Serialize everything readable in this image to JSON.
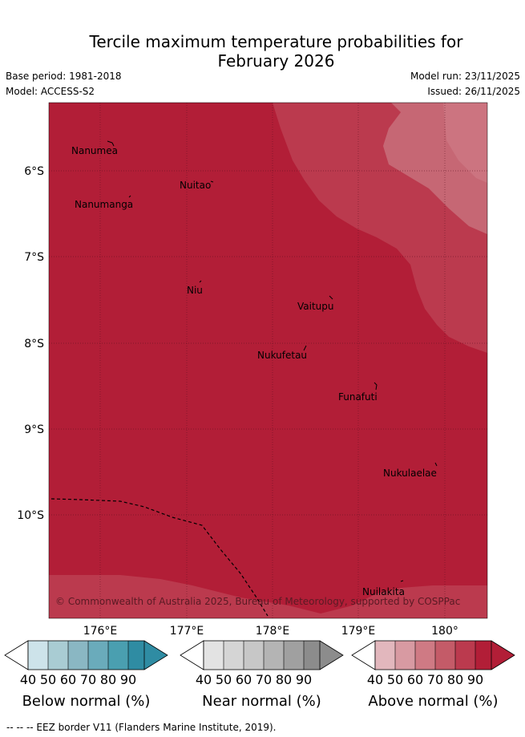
{
  "title": {
    "line1": "Tercile maximum temperature probabilities for",
    "line2": "February 2026"
  },
  "meta": {
    "base_period": "Base period: 1981-2018",
    "model": "Model: ACCESS-S2",
    "model_run": "Model run: 23/11/2025",
    "issued": "Issued: 26/11/2025"
  },
  "map": {
    "lat_labels": [
      "6°S",
      "7°S",
      "8°S",
      "9°S",
      "10°S"
    ],
    "lon_labels": [
      "176°E",
      "177°E",
      "178°E",
      "179°E",
      "180°"
    ],
    "places": [
      "Nanumea",
      "Nuitao",
      "Nanumanga",
      "Niu",
      "Vaitupu",
      "Nukufetau",
      "Funafuti",
      "Nukulaelae",
      "Nuilakita"
    ],
    "copyright": "© Commonwealth of Australia 2025, Bureau of Meteorology, supported by COSPPac",
    "colors": {
      "base": "#b21e37",
      "band_60": "#bb3a4e",
      "band_70": "#c66774",
      "band_90_edge": "#b21e37"
    }
  },
  "colorbars": [
    {
      "label": "Below normal (%)",
      "ticks": [
        "40",
        "50",
        "60",
        "70",
        "80",
        "90"
      ],
      "colors": [
        "#cde3ea",
        "#a9ccd3",
        "#8ab7c3",
        "#6aabbb",
        "#4a9fb0",
        "#2f8ca3"
      ]
    },
    {
      "label": "Near normal (%)",
      "ticks": [
        "40",
        "50",
        "60",
        "70",
        "80",
        "90"
      ],
      "colors": [
        "#e3e3e3",
        "#d5d5d5",
        "#c7c7c7",
        "#b4b4b4",
        "#a0a0a0",
        "#8c8c8c"
      ]
    },
    {
      "label": "Above normal (%)",
      "ticks": [
        "40",
        "50",
        "60",
        "70",
        "80",
        "90"
      ],
      "colors": [
        "#e2b7bd",
        "#d89aa2",
        "#cf7a84",
        "#c45b68",
        "#bb3a4e",
        "#b21e37"
      ]
    }
  ],
  "footer": "--  --  -- EEZ border V11 (Flanders Marine Institute, 2019)."
}
